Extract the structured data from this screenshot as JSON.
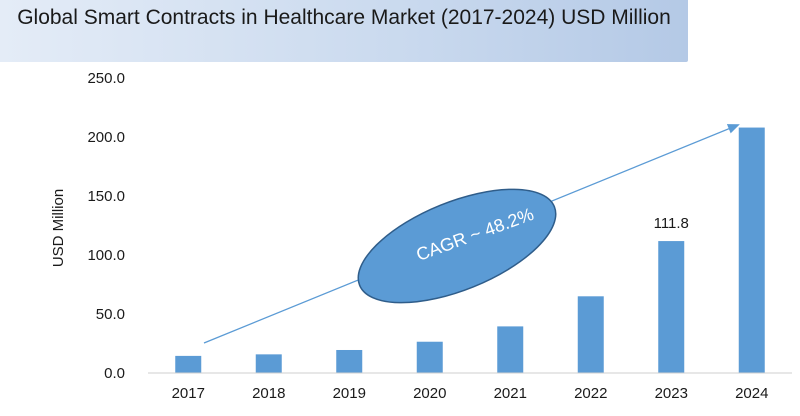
{
  "chart_data": {
    "type": "bar",
    "title": "Global Smart Contracts in Healthcare Market  (2017-2024) USD Million",
    "ylabel": "USD Million",
    "xlabel": "",
    "categories": [
      "2017",
      "2018",
      "2019",
      "2020",
      "2021",
      "2022",
      "2023",
      "2024"
    ],
    "values": [
      14.5,
      15.8,
      19.5,
      26.5,
      39.5,
      65.0,
      111.8,
      208.0
    ],
    "ylim": [
      0,
      250
    ],
    "yticks": [
      "0.0",
      "50.0",
      "100.0",
      "150.0",
      "200.0",
      "250.0"
    ],
    "data_labels": [
      {
        "category": "2023",
        "text": "111.8"
      }
    ],
    "annotation": "CAGR ~ 48.2%",
    "bar_color": "#5b9bd5",
    "grid": false,
    "legend": "none"
  }
}
